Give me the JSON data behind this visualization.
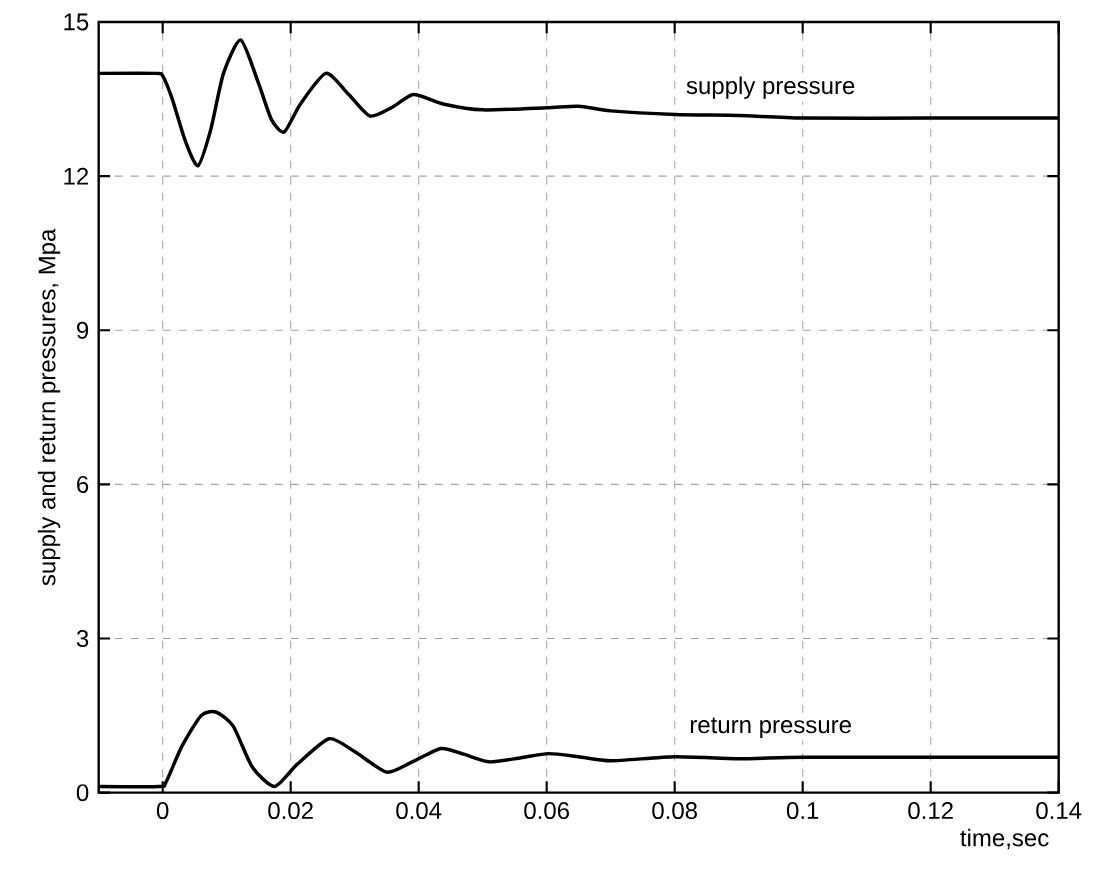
{
  "chart_data": {
    "type": "line",
    "xlabel": "time,sec",
    "ylabel": "supply and return pressures, Mpa",
    "xlim": [
      -0.01,
      0.14
    ],
    "ylim": [
      0,
      15
    ],
    "xticks": [
      0,
      0.02,
      0.04,
      0.06,
      0.08,
      0.1,
      0.12,
      0.14
    ],
    "yticks": [
      0,
      3,
      6,
      9,
      12,
      15
    ],
    "grid": true,
    "marker": "none",
    "line_style": "solid",
    "series": [
      {
        "color": "#000000",
        "x": [
          -0.01,
          -0.001,
          0.0,
          0.0015,
          0.0035,
          0.0055,
          0.0075,
          0.0095,
          0.0122,
          0.015,
          0.017,
          0.019,
          0.0215,
          0.0255,
          0.029,
          0.0324,
          0.036,
          0.0392,
          0.044,
          0.05,
          0.06,
          0.065,
          0.07,
          0.08,
          0.09,
          0.1,
          0.12,
          0.14
        ],
        "values": [
          14.0,
          14.0,
          13.95,
          13.5,
          12.7,
          12.2,
          12.9,
          14.0,
          14.65,
          13.8,
          13.1,
          12.86,
          13.4,
          14.0,
          13.6,
          13.17,
          13.35,
          13.59,
          13.4,
          13.29,
          13.33,
          13.36,
          13.27,
          13.2,
          13.18,
          13.13,
          13.13,
          13.13
        ]
      },
      {
        "color": "#000000",
        "x": [
          -0.01,
          -0.0005,
          0.0005,
          0.003,
          0.006,
          0.0083,
          0.011,
          0.014,
          0.0175,
          0.021,
          0.026,
          0.03,
          0.035,
          0.039,
          0.0435,
          0.047,
          0.051,
          0.056,
          0.0603,
          0.065,
          0.07,
          0.08,
          0.09,
          0.1,
          0.12,
          0.14
        ],
        "values": [
          0.12,
          0.12,
          0.2,
          0.9,
          1.5,
          1.57,
          1.3,
          0.5,
          0.12,
          0.55,
          1.05,
          0.8,
          0.4,
          0.6,
          0.86,
          0.75,
          0.6,
          0.68,
          0.76,
          0.7,
          0.62,
          0.7,
          0.66,
          0.69,
          0.69,
          0.69
        ]
      }
    ],
    "annotations": [
      "supply pressure",
      "return pressure"
    ]
  }
}
